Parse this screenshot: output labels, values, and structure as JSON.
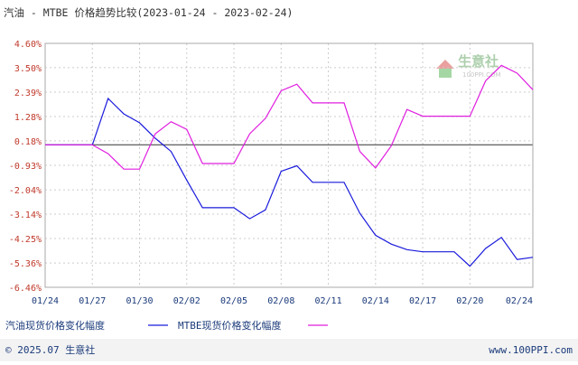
{
  "title": "汽油 - MTBE 价格趋势比较(2023-01-24 - 2023-02-24)",
  "watermark": {
    "name": "生意社",
    "url": "100PPI.COM"
  },
  "footer": {
    "copyright": "© 2025.07 生意社",
    "url": "www.100PPI.com"
  },
  "colors": {
    "gasoline": "#1a1adc",
    "mtbe": "#e01ee0",
    "zero_line": "#333333",
    "grid": "#cccccc",
    "y_tick": "#c0392b",
    "x_tick": "#1a3a7a"
  },
  "chart_data": {
    "type": "line",
    "title": "汽油 - MTBE 价格趋势比较(2023-01-24 - 2023-02-24)",
    "x": [
      "01/24",
      "01/25",
      "01/26",
      "01/27",
      "01/28",
      "01/29",
      "01/30",
      "01/31",
      "02/01",
      "02/02",
      "02/03",
      "02/04",
      "02/05",
      "02/06",
      "02/07",
      "02/08",
      "02/09",
      "02/10",
      "02/11",
      "02/12",
      "02/13",
      "02/14",
      "02/15",
      "02/16",
      "02/17",
      "02/18",
      "02/19",
      "02/20",
      "02/21",
      "02/22",
      "02/23",
      "02/24"
    ],
    "x_tick_labels": [
      "01/24",
      "01/27",
      "01/30",
      "02/02",
      "02/05",
      "02/08",
      "02/11",
      "02/14",
      "02/17",
      "02/20",
      "02/24"
    ],
    "y_tick_labels": [
      "4.60%",
      "3.50%",
      "2.39%",
      "1.28%",
      "0.18%",
      "-0.93%",
      "-2.04%",
      "-3.14%",
      "-4.25%",
      "-5.36%",
      "-6.46%"
    ],
    "ylim": [
      -6.46,
      4.6
    ],
    "series": [
      {
        "name": "汽油现货价格变化幅度",
        "values": [
          0,
          0,
          0,
          0,
          2.1,
          1.4,
          1.0,
          0.3,
          -0.3,
          -1.6,
          -2.85,
          -2.85,
          -2.85,
          -3.35,
          -2.95,
          -1.2,
          -0.95,
          -1.7,
          -1.7,
          -1.7,
          -3.1,
          -4.1,
          -4.5,
          -4.75,
          -4.85,
          -4.85,
          -4.85,
          -5.5,
          -4.7,
          -4.2,
          -5.2,
          -5.1
        ]
      },
      {
        "name": "MTBE现货价格变化幅度",
        "values": [
          0,
          0,
          0,
          0,
          -0.4,
          -1.1,
          -1.1,
          0.5,
          1.05,
          0.7,
          -0.85,
          -0.85,
          -0.85,
          0.5,
          1.2,
          2.45,
          2.75,
          1.9,
          1.9,
          1.9,
          -0.3,
          -1.05,
          -0.05,
          1.6,
          1.3,
          1.3,
          1.3,
          1.3,
          2.9,
          3.6,
          3.25,
          2.5
        ]
      }
    ],
    "grid": true,
    "legend_position": "bottom-left"
  }
}
